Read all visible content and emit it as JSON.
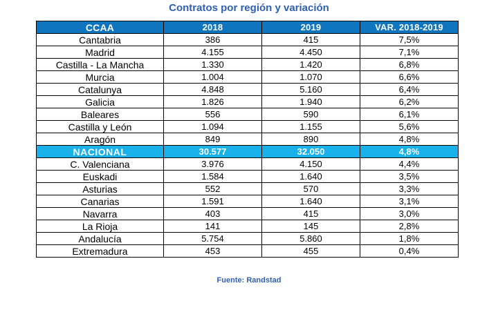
{
  "title": "Contratos por región y variación",
  "table": {
    "headers": [
      "CCAA",
      "2018",
      "2019",
      "VAR. 2018-2019"
    ],
    "rows": [
      {
        "region": "Cantabria",
        "y2018": "386",
        "y2019": "415",
        "var": "7,5%",
        "highlight": false
      },
      {
        "region": "Madrid",
        "y2018": "4.155",
        "y2019": "4.450",
        "var": "7,1%",
        "highlight": false
      },
      {
        "region": "Castilla - La Mancha",
        "y2018": "1.330",
        "y2019": "1.420",
        "var": "6,8%",
        "highlight": false
      },
      {
        "region": "Murcia",
        "y2018": "1.004",
        "y2019": "1.070",
        "var": "6,6%",
        "highlight": false
      },
      {
        "region": "Catalunya",
        "y2018": "4.848",
        "y2019": "5.160",
        "var": "6,4%",
        "highlight": false
      },
      {
        "region": "Galicia",
        "y2018": "1.826",
        "y2019": "1.940",
        "var": "6,2%",
        "highlight": false
      },
      {
        "region": "Baleares",
        "y2018": "556",
        "y2019": "590",
        "var": "6,1%",
        "highlight": false
      },
      {
        "region": "Castilla y León",
        "y2018": "1.094",
        "y2019": "1.155",
        "var": "5,6%",
        "highlight": false
      },
      {
        "region": "Aragón",
        "y2018": "849",
        "y2019": "890",
        "var": "4,8%",
        "highlight": false
      },
      {
        "region": "NACIONAL",
        "y2018": "30.577",
        "y2019": "32.050",
        "var": "4,8%",
        "highlight": true
      },
      {
        "region": "C. Valenciana",
        "y2018": "3.976",
        "y2019": "4.150",
        "var": "4,4%",
        "highlight": false
      },
      {
        "region": "Euskadi",
        "y2018": "1.584",
        "y2019": "1.640",
        "var": "3,5%",
        "highlight": false
      },
      {
        "region": "Asturias",
        "y2018": "552",
        "y2019": "570",
        "var": "3,3%",
        "highlight": false
      },
      {
        "region": "Canarias",
        "y2018": "1.591",
        "y2019": "1.640",
        "var": "3,1%",
        "highlight": false
      },
      {
        "region": "Navarra",
        "y2018": "403",
        "y2019": "415",
        "var": "3,0%",
        "highlight": false
      },
      {
        "region": "La Rioja",
        "y2018": "141",
        "y2019": "145",
        "var": "2,8%",
        "highlight": false
      },
      {
        "region": "Andalucía",
        "y2018": "5.754",
        "y2019": "5.860",
        "var": "1,8%",
        "highlight": false
      },
      {
        "region": "Extremadura",
        "y2018": "453",
        "y2019": "455",
        "var": "0,4%",
        "highlight": false
      }
    ]
  },
  "colors": {
    "title_text": "#2f5fb3",
    "header_bg": "#0f75bf",
    "highlight_bg": "#19b1ea"
  },
  "source": "Fuente: Randstad"
}
